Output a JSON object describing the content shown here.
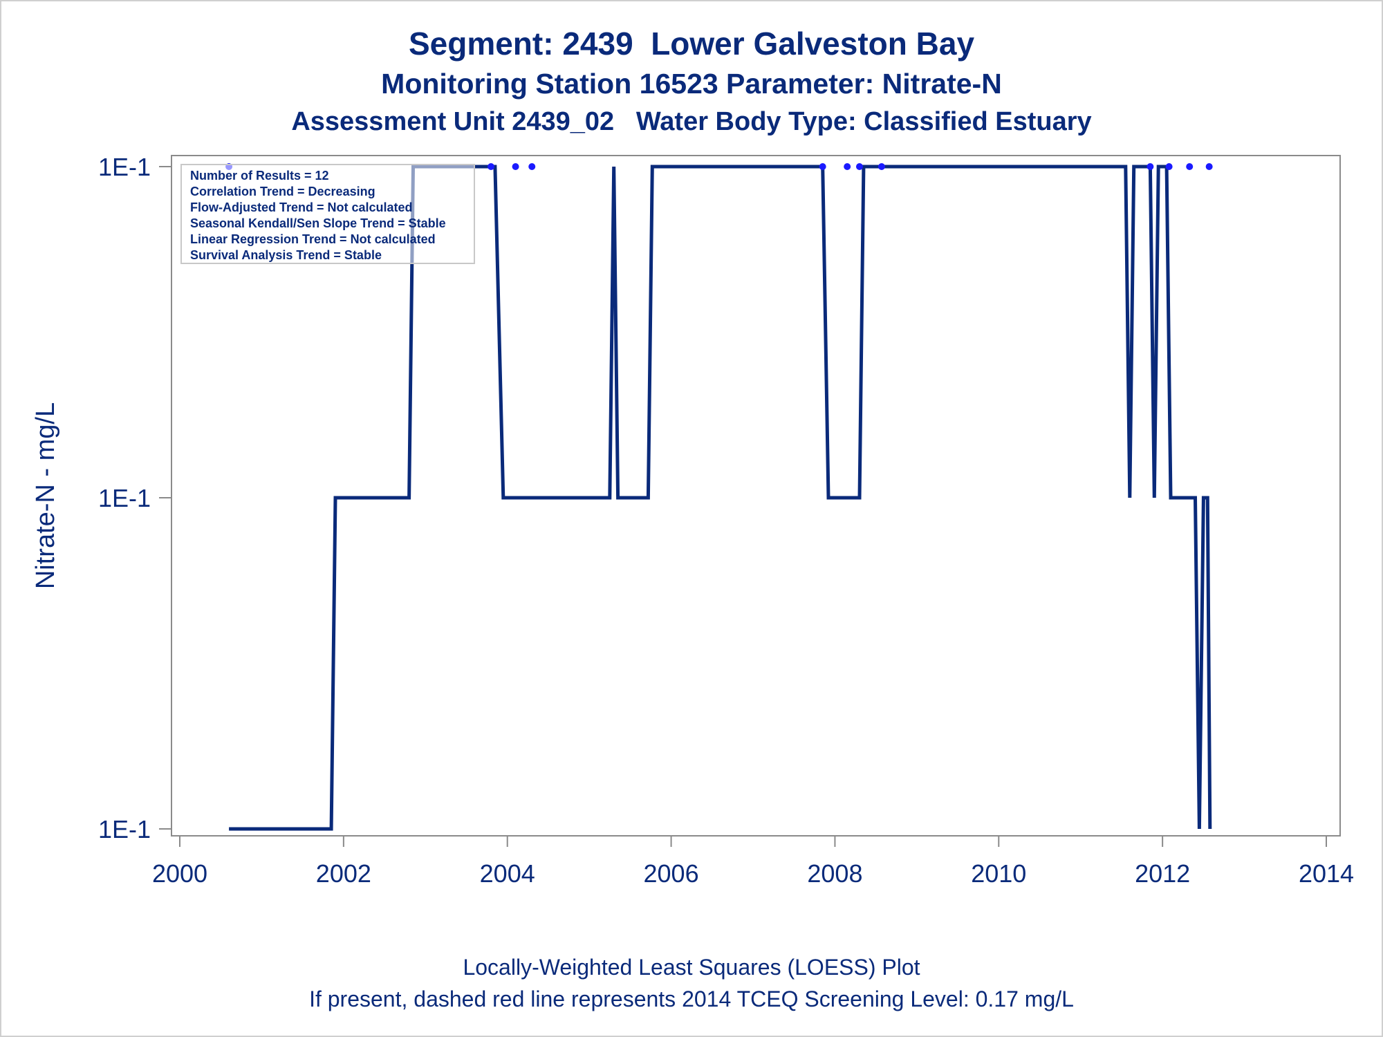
{
  "header": {
    "title1": "Segment: 2439  Lower Galveston Bay",
    "title2": "Monitoring Station 16523 Parameter: Nitrate-N",
    "title3": "Assessment Unit 2439_02   Water Body Type: Classified Estuary"
  },
  "footer": {
    "line1": "Locally-Weighted Least Squares (LOESS) Plot",
    "line2": "If present, dashed red line represents 2014 TCEQ Screening Level: 0.17 mg/L"
  },
  "chart_data": {
    "type": "line",
    "ylabel": "Nitrate-N - mg/L",
    "xlim": [
      2000,
      2014
    ],
    "x_ticks": [
      2000,
      2002,
      2004,
      2006,
      2008,
      2010,
      2012,
      2014
    ],
    "y_tick_labels": [
      "1E-1",
      "1E-1",
      "1E-1"
    ],
    "stats": [
      "Number of Results = 12",
      "Correlation Trend = Decreasing",
      "Flow-Adjusted Trend = Not calculated",
      "Seasonal Kendall/Sen Slope Trend = Stable",
      "Linear Regression Trend = Not calculated",
      "Survival Analysis Trend = Stable"
    ],
    "colors": {
      "line": "#0a2a7a",
      "points": "#1a1aff",
      "text": "#0a2a7a",
      "axis": "#8a8a8a"
    },
    "series": [
      {
        "type": "loess-line",
        "x": [
          2000.6,
          2001.85,
          2001.9,
          2002.8,
          2002.85,
          2003.8,
          2003.85,
          2003.95,
          2005.25,
          2005.3,
          2005.35,
          2005.72,
          2005.77,
          2007.85,
          2007.92,
          2008.3,
          2008.35,
          2011.55,
          2011.6,
          2011.65,
          2011.85,
          2011.9,
          2011.95,
          2012.0,
          2012.05,
          2012.1,
          2012.4,
          2012.45,
          2012.5,
          2012.55,
          2012.58
        ],
        "level": [
          0,
          0,
          1,
          1,
          2,
          2,
          2,
          1,
          1,
          2,
          1,
          1,
          2,
          2,
          1,
          1,
          2,
          2,
          1,
          2,
          2,
          1,
          2,
          2,
          2,
          1,
          1,
          0,
          1,
          1,
          0
        ]
      },
      {
        "type": "points",
        "x": [
          2000.6,
          2003.8,
          2004.1,
          2004.3,
          2007.85,
          2008.15,
          2008.3,
          2008.57,
          2011.85,
          2012.08,
          2012.33,
          2012.57
        ],
        "level": [
          2,
          2,
          2,
          2,
          2,
          2,
          2,
          2,
          2,
          2,
          2,
          2
        ]
      }
    ]
  }
}
